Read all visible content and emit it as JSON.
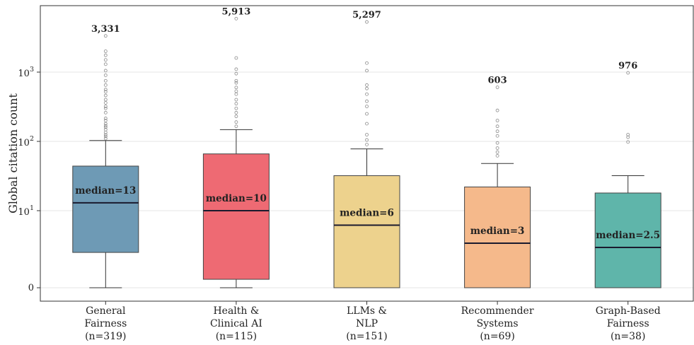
{
  "chart_data": {
    "type": "box",
    "ylabel": "Global citation count",
    "yscale": "symlog",
    "y_ticks": [
      {
        "value": 0,
        "label": "0"
      },
      {
        "value": 10,
        "label": "10",
        "sup": "1"
      },
      {
        "value": 100,
        "label": "10",
        "sup": "2"
      },
      {
        "value": 1000,
        "label": "10",
        "sup": "3"
      }
    ],
    "grid": "horizontal",
    "categories": [
      {
        "label_lines": [
          "General",
          "Fairness",
          "(n=319)"
        ],
        "color": "#6e9ab5",
        "q1": 2,
        "median": 13,
        "q3": 44,
        "whisker_low": 0,
        "whisker_high": 103,
        "median_label": "median=13",
        "max_label": "3,331",
        "max": 3331,
        "outliers": [
          110,
          118,
          125,
          135,
          148,
          160,
          168,
          180,
          200,
          215,
          260,
          300,
          320,
          360,
          400,
          460,
          520,
          560,
          650,
          750,
          900,
          1050,
          1300,
          1500,
          1750,
          2000
        ]
      },
      {
        "label_lines": [
          "Health &",
          "Clinical AI",
          "(n=115)"
        ],
        "color": "#ee6a73",
        "q1": 0.3,
        "median": 10,
        "q3": 66,
        "whisker_low": 0,
        "whisker_high": 148,
        "median_label": "median=10",
        "max_label": "5,913",
        "max": 5913,
        "outliers": [
          165,
          190,
          230,
          260,
          300,
          350,
          400,
          480,
          530,
          600,
          700,
          750,
          950,
          1100,
          1600
        ]
      },
      {
        "label_lines": [
          "LLMs &",
          "NLP",
          "(n=151)"
        ],
        "color": "#edd28d",
        "q1": 0,
        "median": 6,
        "q3": 32,
        "whisker_low": 0,
        "whisker_high": 78,
        "median_label": "median=6",
        "max_label": "5,297",
        "max": 5297,
        "outliers": [
          90,
          105,
          125,
          180,
          250,
          320,
          380,
          480,
          580,
          650,
          1050,
          1350
        ]
      },
      {
        "label_lines": [
          "Recommender",
          "Systems",
          "(n=69)"
        ],
        "color": "#f5b98b",
        "q1": 0,
        "median": 3,
        "q3": 22,
        "whisker_low": 0,
        "whisker_high": 48,
        "median_label": "median=3",
        "max_label": "603",
        "max": 603,
        "outliers": [
          62,
          70,
          80,
          95,
          120,
          140,
          165,
          200,
          280
        ]
      },
      {
        "label_lines": [
          "Graph-Based",
          "Fairness",
          "(n=38)"
        ],
        "color": "#5fb5aa",
        "q1": 0,
        "median": 2.5,
        "q3": 18,
        "whisker_low": 0,
        "whisker_high": 32,
        "median_label": "median=2.5",
        "max_label": "976",
        "max": 976,
        "outliers": [
          98,
          115,
          125
        ]
      }
    ]
  }
}
